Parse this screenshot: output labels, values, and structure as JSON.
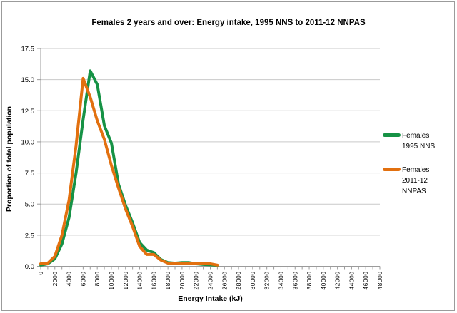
{
  "chart": {
    "title": "Females 2 years and over: Energy intake, 1995 NNS to 2011-12 NNPAS",
    "xlabel": "Energy Intake (kJ)",
    "ylabel": "Proportion of total population"
  },
  "legend": {
    "items": [
      {
        "label": "Females 1995 NNS",
        "lines": [
          "Females",
          "1995 NNS"
        ],
        "color": "#169245"
      },
      {
        "label": "Females 2011-12 NNPAS",
        "lines": [
          "Females",
          "2011-12",
          "NNPAS"
        ],
        "color": "#e2700f"
      }
    ]
  },
  "chart_data": {
    "type": "line",
    "title": "Females 2 years and over: Energy intake, 1995 NNS to 2011-12 NNPAS",
    "xlabel": "Energy Intake (kJ)",
    "ylabel": "Proportion of total population",
    "xlim": [
      0,
      48000
    ],
    "ylim": [
      0,
      17.5
    ],
    "x_major_tick_step": 2000,
    "x_minor_tick_step": 1000,
    "y_tick_step": 2.5,
    "grid": "horizontal",
    "legend_position": "right",
    "x_tick_labels": [
      "0",
      "2000",
      "4000",
      "6000",
      "8000",
      "10000",
      "12000",
      "14000",
      "16000",
      "18000",
      "20000",
      "22000",
      "24000",
      "26000",
      "28000",
      "30000",
      "32000",
      "34000",
      "36000",
      "38000",
      "40000",
      "42000",
      "44000",
      "46000",
      "48000"
    ],
    "y_tick_labels": [
      "0.0",
      "2.5",
      "5.0",
      "7.5",
      "10.0",
      "12.5",
      "15.0",
      "17.5"
    ],
    "x": [
      0,
      1000,
      2000,
      3000,
      4000,
      5000,
      6000,
      7000,
      8000,
      9000,
      10000,
      11000,
      12000,
      13000,
      14000,
      15000,
      16000,
      17000,
      18000,
      19000,
      20000,
      21000,
      22000,
      23000,
      24000,
      25000
    ],
    "series": [
      {
        "name": "Females 1995 NNS",
        "color": "#169245",
        "values": [
          0.1,
          0.2,
          0.6,
          1.8,
          3.9,
          7.5,
          11.8,
          15.7,
          14.6,
          11.3,
          9.9,
          6.6,
          4.9,
          3.5,
          1.9,
          1.3,
          1.1,
          0.55,
          0.3,
          0.25,
          0.3,
          0.3,
          0.2,
          0.15,
          0.12,
          0.08
        ]
      },
      {
        "name": "Females 2011-12 NNPAS",
        "color": "#e2700f",
        "values": [
          0.2,
          0.25,
          0.8,
          2.5,
          5.3,
          9.7,
          15.1,
          13.6,
          11.7,
          10.2,
          8.1,
          6.3,
          4.6,
          3.2,
          1.6,
          0.95,
          0.95,
          0.5,
          0.25,
          0.2,
          0.2,
          0.25,
          0.25,
          0.2,
          0.2,
          0.1
        ]
      }
    ],
    "colors": {
      "grid": "#c9c9c9",
      "axis": "#9b9b9b",
      "text": "#000000"
    }
  }
}
